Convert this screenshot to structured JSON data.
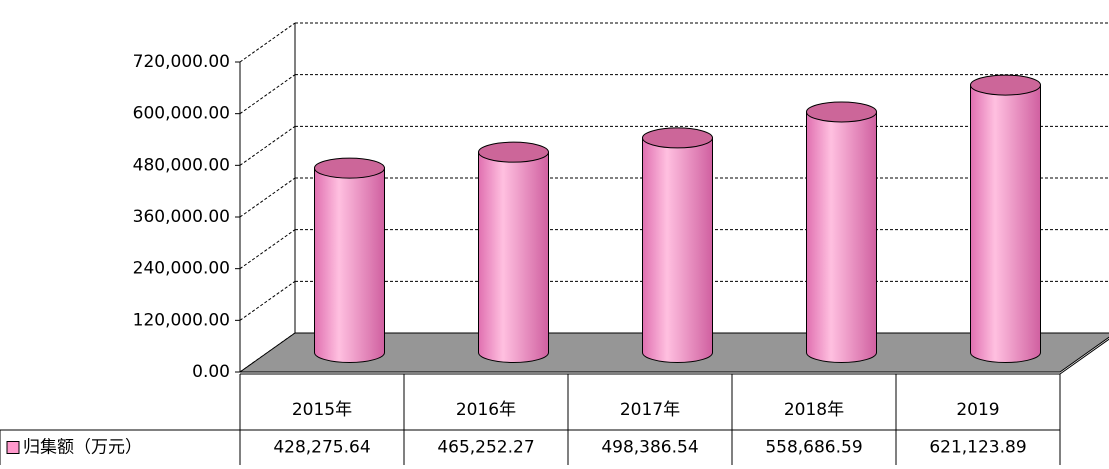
{
  "chart_data": {
    "type": "bar3d",
    "categories": [
      "2015年",
      "2016年",
      "2017年",
      "2018年",
      "2019"
    ],
    "series": [
      {
        "name": "归集额（万元）",
        "color": "#ff99cc",
        "values": [
          428275.64,
          465252.27,
          498386.54,
          558686.59,
          621123.89
        ],
        "value_labels": [
          "428,275.64",
          "465,252.27",
          "498,386.54",
          "558,686.59",
          "621,123.89"
        ]
      }
    ],
    "ylim": [
      0,
      720000
    ],
    "yticks": [
      {
        "value": 0,
        "label": "0.00"
      },
      {
        "value": 120000,
        "label": "120,000.00"
      },
      {
        "value": 240000,
        "label": "240,000.00"
      },
      {
        "value": 360000,
        "label": "360,000.00"
      },
      {
        "value": 480000,
        "label": "480,000.00"
      },
      {
        "value": 600000,
        "label": "600,000.00"
      },
      {
        "value": 720000,
        "label": "720,000.00"
      }
    ],
    "grid": true
  }
}
